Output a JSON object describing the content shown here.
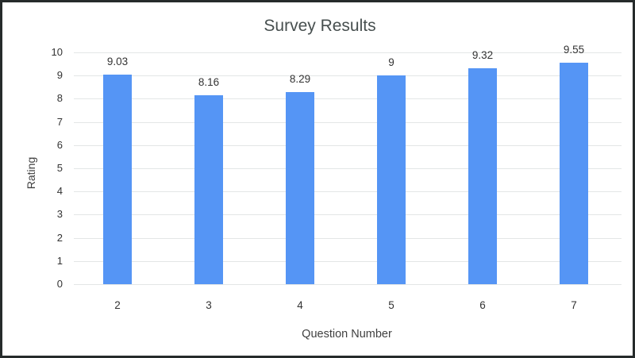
{
  "chart_data": {
    "type": "bar",
    "title": "Survey Results",
    "xlabel": "Question Number",
    "ylabel": "Rating",
    "categories": [
      "2",
      "3",
      "4",
      "5",
      "6",
      "7"
    ],
    "values": [
      9.03,
      8.16,
      8.29,
      9,
      9.32,
      9.55
    ],
    "data_labels": [
      "9.03",
      "8.16",
      "8.29",
      "9",
      "9.32",
      "9.55"
    ],
    "ylim": [
      0,
      10
    ],
    "yticks": [
      "0",
      "1",
      "2",
      "3",
      "4",
      "5",
      "6",
      "7",
      "8",
      "9",
      "10"
    ],
    "grid": true,
    "legend": null,
    "bar_color": "#5595f5"
  }
}
